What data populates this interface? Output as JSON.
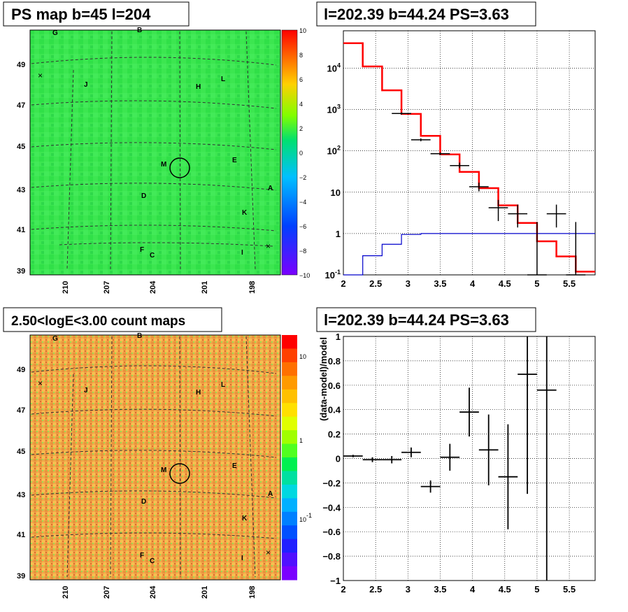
{
  "panels": {
    "top_left_title": "PS map b=45 l=204",
    "top_right_title": "l=202.39 b=44.24 PS=3.63",
    "bottom_left_title": "2.50<logE<3.00 count maps",
    "bottom_right_title": "l=202.39 b=44.24 PS=3.63"
  },
  "colors": {
    "ps_map_background": "#33e64a",
    "count_map_background": "#f0a44a",
    "data": "#000000",
    "model": "#ff0000",
    "background_model": "#0000cc"
  },
  "chart_data": [
    {
      "type": "heatmap",
      "title": "PS map b=45 l=204",
      "x_ticks": [
        "210",
        "207",
        "204",
        "201",
        "198"
      ],
      "y_ticks": [
        "49",
        "47",
        "45",
        "43",
        "41",
        "39"
      ],
      "colorbar_ticks": [
        "10",
        "8",
        "6",
        "4",
        "2",
        "0",
        "−2",
        "−4",
        "−6",
        "−8",
        "−10"
      ],
      "zlim": [
        -10,
        10
      ],
      "sources": [
        "G",
        "B",
        "J",
        "H",
        "L",
        "M",
        "E",
        "D",
        "A",
        "K",
        "F",
        "C",
        "I"
      ]
    },
    {
      "type": "line",
      "title": "l=202.39 b=44.24 PS=3.63",
      "y_scale": "log",
      "xlim": [
        2,
        5.9
      ],
      "ylim": [
        0.1,
        80000
      ],
      "x_ticks": [
        "2",
        "2.5",
        "3",
        "3.5",
        "4",
        "4.5",
        "5",
        "5.5"
      ],
      "y_ticks": [
        "10^-1",
        "1",
        "10",
        "10^2",
        "10^3",
        "10^4"
      ],
      "series": [
        {
          "kind": "step",
          "color": "red",
          "edges": [
            2.0,
            2.3,
            2.6,
            2.9,
            3.2,
            3.5,
            3.8,
            4.1,
            4.4,
            4.7,
            5.0,
            5.3,
            5.6,
            5.9
          ],
          "values": [
            40000,
            11000,
            2900,
            780,
            230,
            82,
            31,
            12.5,
            4.8,
            1.8,
            0.65,
            0.28,
            0.12
          ]
        },
        {
          "kind": "step",
          "color": "blue",
          "edges": [
            2.0,
            2.3,
            2.6,
            2.9,
            3.2,
            3.5,
            3.8,
            4.1,
            4.4,
            4.7,
            5.0,
            5.3,
            5.6,
            5.9
          ],
          "values": [
            0.1,
            0.29,
            0.55,
            0.95,
            1.0,
            1.0,
            1.0,
            1.0,
            1.0,
            1.0,
            1.0,
            1.0,
            1.0
          ]
        },
        {
          "kind": "points",
          "x": [
            2.9,
            3.2,
            3.5,
            3.8,
            4.1,
            4.4,
            4.7,
            5.0,
            5.3,
            5.6
          ],
          "xerr": [
            0.15,
            0.15,
            0.15,
            0.15,
            0.15,
            0.15,
            0.15,
            0.15,
            0.15,
            0.15
          ],
          "y": [
            800,
            185,
            85,
            44,
            13.5,
            4.2,
            3.0,
            0.1,
            3.0,
            0.1
          ],
          "ylo": [
            750,
            170,
            78,
            38,
            10.5,
            2.0,
            1.4,
            0.1,
            1.4,
            0.1
          ],
          "yhi": [
            850,
            200,
            92,
            52,
            17,
            6.5,
            5.0,
            1.9,
            5.0,
            1.9
          ]
        }
      ]
    },
    {
      "type": "heatmap",
      "title": "2.50<logE<3.00 count maps",
      "x_ticks": [
        "210",
        "207",
        "204",
        "201",
        "198"
      ],
      "y_ticks": [
        "49",
        "47",
        "45",
        "43",
        "41",
        "39"
      ],
      "colorbar_ticks": [
        "10",
        "1",
        "10^-1"
      ],
      "z_scale": "log",
      "sources": [
        "G",
        "B",
        "J",
        "H",
        "L",
        "M",
        "E",
        "D",
        "A",
        "K",
        "F",
        "C",
        "I"
      ]
    },
    {
      "type": "scatter",
      "title": "l=202.39 b=44.24 PS=3.63",
      "ylabel": "(data-model)/model",
      "xlim": [
        2,
        5.9
      ],
      "ylim": [
        -1,
        1
      ],
      "x_ticks": [
        "2",
        "2.5",
        "3",
        "3.5",
        "4",
        "4.5",
        "5",
        "5.5"
      ],
      "y_ticks": [
        "1",
        "0.8",
        "0.6",
        "0.4",
        "0.2",
        "0",
        "−0.2",
        "−0.4",
        "−0.6",
        "−0.8",
        "−1"
      ],
      "points": {
        "x": [
          2.15,
          2.45,
          2.75,
          3.05,
          3.35,
          3.65,
          3.95,
          4.25,
          4.55,
          4.85,
          5.15
        ],
        "xerr": [
          0.15,
          0.15,
          0.15,
          0.15,
          0.15,
          0.15,
          0.15,
          0.15,
          0.15,
          0.15,
          0.15
        ],
        "y": [
          0.02,
          -0.01,
          -0.01,
          0.05,
          -0.23,
          0.01,
          0.38,
          0.07,
          -0.15,
          0.69,
          0.56
        ],
        "yerr": [
          0.01,
          0.02,
          0.03,
          0.04,
          0.05,
          0.11,
          0.2,
          0.29,
          0.43,
          0.98,
          1.6
        ]
      }
    }
  ],
  "source_labels": [
    "G",
    "B",
    "J",
    "H",
    "L",
    "M",
    "E",
    "D",
    "A",
    "K",
    "F",
    "C",
    "I"
  ]
}
